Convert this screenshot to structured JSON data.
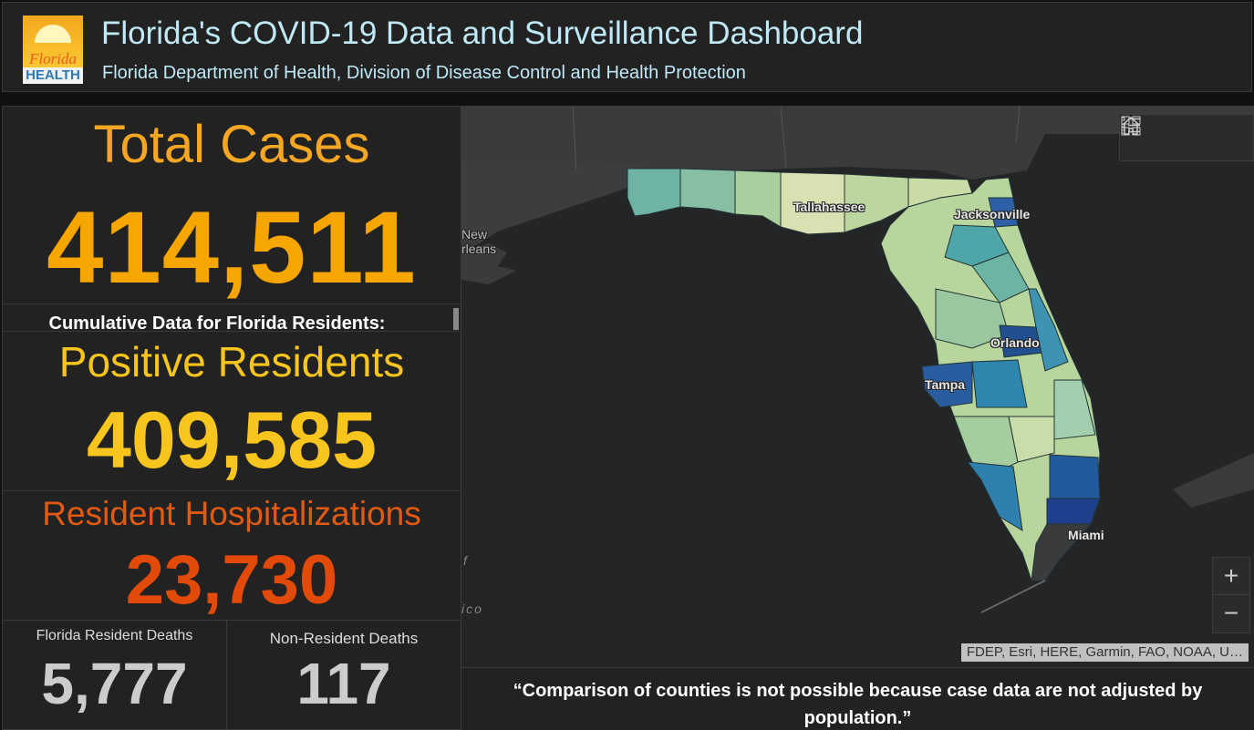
{
  "header": {
    "title": "Florida's COVID-19 Data and Surveillance Dashboard",
    "subtitle": "Florida Department of Health, Division of Disease Control and Health Protection",
    "logo": {
      "line1": "Florida",
      "line2": "HEALTH"
    }
  },
  "stats": {
    "total_label": "Total Cases",
    "total_value": "414,511",
    "scroll_text": "Cumulative Data for Florida Residents:",
    "positive_label": "Positive Residents",
    "positive_value": "409,585",
    "hosp_label": "Resident Hospitalizations",
    "hosp_value": "23,730",
    "deaths_label": "Florida Resident Deaths",
    "deaths_value": "5,777",
    "nonres_label": "Non-Resident Deaths",
    "nonres_value": "117"
  },
  "map": {
    "labels": {
      "tallahassee": "Tallahassee",
      "jacksonville": "Jacksonville",
      "orlando": "Orlando",
      "tampa": "Tampa",
      "miami": "Miami",
      "new_orleans_1": "New",
      "new_orleans_2": "rleans",
      "gulf_f": "f",
      "gulf_ico": "ico"
    },
    "toolbar": {
      "home_icon": "home-icon",
      "legend_icon": "legend-list-icon",
      "basemap_icon": "basemap-gallery-icon"
    },
    "zoom_in": "+",
    "zoom_out": "−",
    "attribution": "FDEP, Esri, HERE, Garmin, FAO, NOAA, U…"
  },
  "quote": "“Comparison of counties is not possible because case data are not adjusted by population.”",
  "colors": {
    "orange": "#f7a600",
    "yellow": "#f8c51e",
    "red_orange": "#e24a0a",
    "title_blue": "#bfe9f7"
  }
}
